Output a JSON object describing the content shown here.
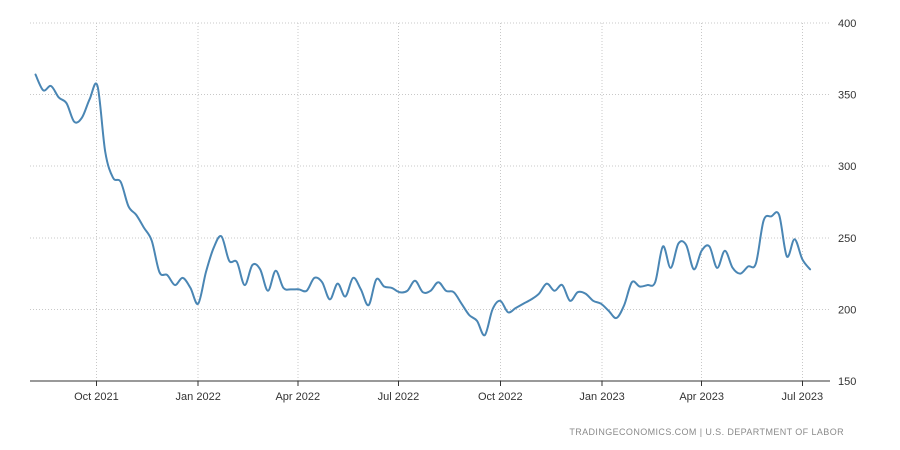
{
  "chart_data": {
    "type": "line",
    "x_start": "2021-08-07",
    "x_step_days": 7,
    "values": [
      364,
      353,
      356,
      348,
      344,
      331,
      334,
      347,
      356,
      310,
      292,
      289,
      272,
      266,
      257,
      248,
      226,
      224,
      217,
      222,
      215,
      204,
      226,
      243,
      251,
      234,
      233,
      217,
      231,
      228,
      213,
      227,
      215,
      214,
      214,
      213,
      222,
      219,
      207,
      218,
      209,
      222,
      214,
      203,
      221,
      216,
      215,
      212,
      213,
      220,
      212,
      213,
      219,
      213,
      212,
      204,
      196,
      192,
      182,
      200,
      206,
      198,
      201,
      204,
      207,
      211,
      218,
      213,
      217,
      206,
      212,
      211,
      206,
      204,
      199,
      194,
      203,
      219,
      216,
      217,
      219,
      244,
      229,
      246,
      245,
      228,
      241,
      244,
      229,
      241,
      229,
      225,
      230,
      232,
      262,
      265,
      266,
      237,
      249,
      235,
      228
    ],
    "ylim": [
      150,
      400
    ],
    "yticks": [
      150,
      200,
      250,
      300,
      350,
      400
    ],
    "xtick_dates": [
      "2021-10-01",
      "2022-01-01",
      "2022-04-01",
      "2022-07-01",
      "2022-10-01",
      "2023-01-01",
      "2023-04-01",
      "2023-07-01"
    ],
    "xtick_labels": [
      "Oct 2021",
      "Jan 2022",
      "Apr 2022",
      "Jul 2022",
      "Oct 2022",
      "Jan 2023",
      "Apr 2023",
      "Jul 2023"
    ],
    "line_color": "#4a86b4",
    "grid": true,
    "grid_color": "#c8c8c8",
    "axis_color": "#333333"
  },
  "attribution": "TRADINGECONOMICS.COM  |  U.S. DEPARTMENT OF LABOR"
}
